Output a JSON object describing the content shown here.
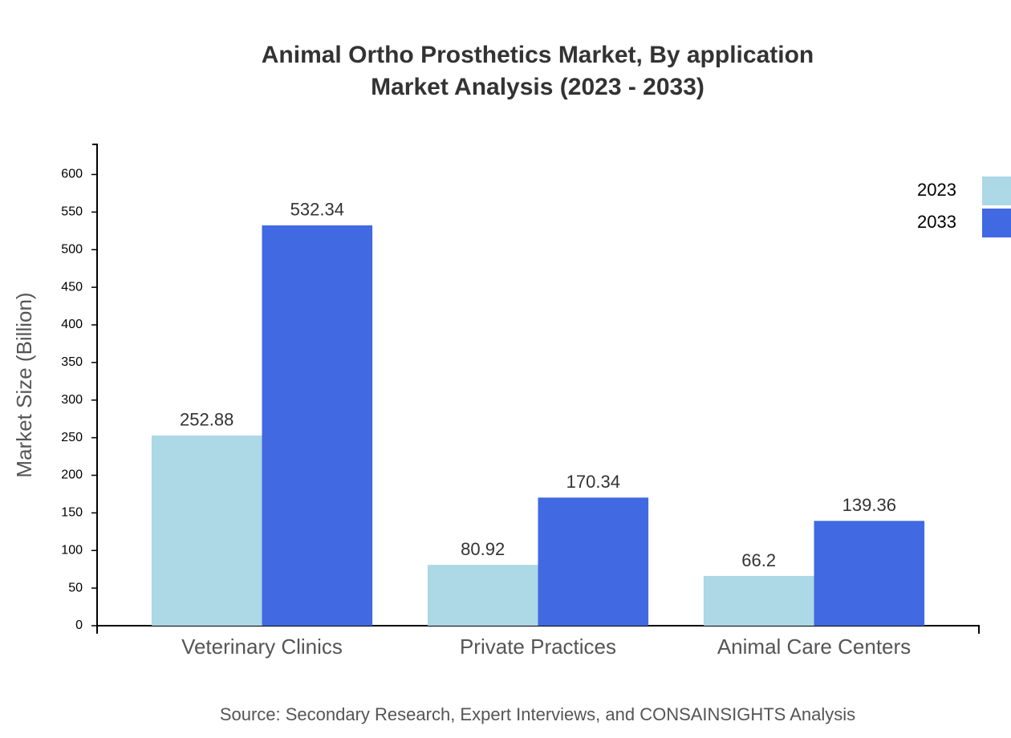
{
  "chart_data": {
    "type": "bar",
    "title": "Animal Ortho Prosthetics Market, By application",
    "subtitle": "Market Analysis (2023 - 2033)",
    "y_label": "Market Size (Billion)",
    "source": "Source: Secondary Research, Expert Interviews, and CONSAINSIGHTS Analysis",
    "categories": [
      "Veterinary Clinics",
      "Private Practices",
      "Animal Care Centers"
    ],
    "series": [
      {
        "name": "2023",
        "color": "#add8e6",
        "values": [
          252.88,
          80.92,
          66.2
        ]
      },
      {
        "name": "2033",
        "color": "#4169e1",
        "values": [
          532.34,
          170.34,
          139.36
        ]
      }
    ],
    "ylim": [
      0,
      640
    ],
    "yticks": [
      0,
      50,
      100,
      150,
      200,
      250,
      300,
      350,
      400,
      450,
      500,
      550,
      600
    ],
    "legend": "top-right"
  }
}
